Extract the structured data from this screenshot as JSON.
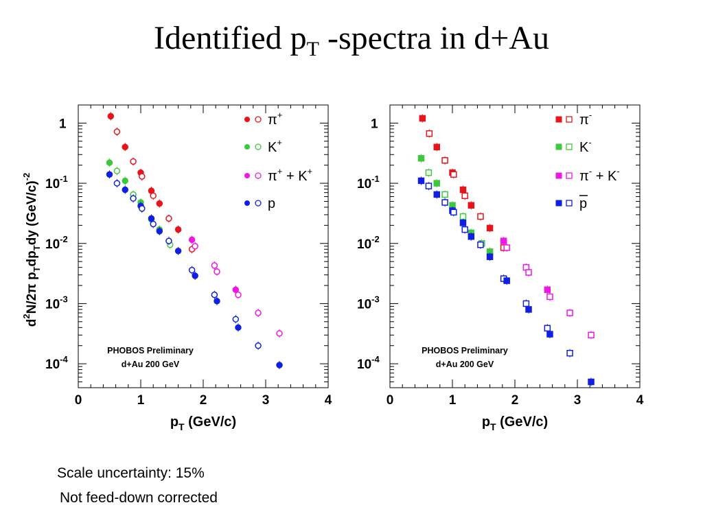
{
  "slide": {
    "title_main": "Identified p",
    "title_sub": "T",
    "title_rest": " -spectra in d+Au",
    "note_scale": "Scale uncertainty: 15%",
    "note_feeddown": "Not feed-down corrected"
  },
  "colors": {
    "red": "#e8141c",
    "green": "#3ec83e",
    "magenta": "#ee18e6",
    "blue": "#1020e0"
  },
  "chart_data": [
    {
      "type": "scatter",
      "yscale": "log",
      "xlim": [
        0,
        4
      ],
      "ylim": [
        4e-05,
        2
      ],
      "xticks": [
        "0",
        "1",
        "2",
        "3",
        "4"
      ],
      "yticks": [
        {
          "base": "1",
          "exp": ""
        },
        {
          "base": "10",
          "exp": "-1"
        },
        {
          "base": "10",
          "exp": "-2"
        },
        {
          "base": "10",
          "exp": "-3"
        },
        {
          "base": "10",
          "exp": "-4"
        }
      ],
      "xlabel": "p_T (GeV/c)",
      "ylabel": "d^2N/2π p_T dp_T dy (GeV/c)^-2",
      "annotation": [
        "PHOBOS Preliminary",
        "d+Au 200 GeV"
      ],
      "legend_position": "top-right",
      "series": [
        {
          "name": "π+",
          "color": "red",
          "x": [
            0.52,
            0.62,
            0.75,
            0.88,
            1.0,
            1.02,
            1.17,
            1.2,
            1.3,
            1.45,
            1.6,
            1.82
          ],
          "y": [
            1.3,
            0.72,
            0.4,
            0.23,
            0.15,
            0.13,
            0.075,
            0.062,
            0.046,
            0.026,
            0.017,
            0.008
          ]
        },
        {
          "name": "K+",
          "color": "green",
          "x": [
            0.5,
            0.62,
            0.75,
            0.88,
            1.0,
            1.17,
            1.3,
            1.47
          ],
          "y": [
            0.22,
            0.16,
            0.11,
            0.065,
            0.048,
            0.025,
            0.017,
            0.0095
          ]
        },
        {
          "name": "π+ + K+",
          "color": "magenta",
          "x": [
            1.82,
            1.87,
            2.18,
            2.22,
            2.52,
            2.56,
            2.88,
            3.22
          ],
          "y": [
            0.0115,
            0.009,
            0.0043,
            0.0034,
            0.0017,
            0.0014,
            0.0007,
            0.00032
          ]
        },
        {
          "name": "p",
          "color": "blue",
          "x": [
            0.5,
            0.62,
            0.75,
            0.88,
            1.0,
            1.02,
            1.17,
            1.2,
            1.3,
            1.45,
            1.6,
            1.82,
            1.87,
            2.18,
            2.22,
            2.52,
            2.56,
            2.88,
            3.22
          ],
          "y": [
            0.14,
            0.1,
            0.078,
            0.056,
            0.042,
            0.038,
            0.026,
            0.021,
            0.016,
            0.011,
            0.0075,
            0.0036,
            0.0029,
            0.0014,
            0.0011,
            0.00055,
            0.0004,
            0.0002,
            9.5e-05
          ]
        }
      ]
    },
    {
      "type": "scatter",
      "yscale": "log",
      "xlim": [
        0,
        4
      ],
      "ylim": [
        4e-05,
        2
      ],
      "xticks": [
        "0",
        "1",
        "2",
        "3",
        "4"
      ],
      "yticks": [
        {
          "base": "1",
          "exp": ""
        },
        {
          "base": "10",
          "exp": "-1"
        },
        {
          "base": "10",
          "exp": "-2"
        },
        {
          "base": "10",
          "exp": "-3"
        },
        {
          "base": "10",
          "exp": "-4"
        }
      ],
      "xlabel": "p_T (GeV/c)",
      "ylabel": "",
      "annotation": [
        "PHOBOS Preliminary",
        "d+Au 200 GeV"
      ],
      "legend_position": "top-right",
      "series": [
        {
          "name": "π-",
          "color": "red",
          "x": [
            0.52,
            0.63,
            0.75,
            0.88,
            1.0,
            1.02,
            1.17,
            1.2,
            1.3,
            1.45,
            1.6,
            1.82
          ],
          "y": [
            1.2,
            0.67,
            0.4,
            0.24,
            0.15,
            0.14,
            0.078,
            0.062,
            0.043,
            0.028,
            0.018,
            0.0085
          ]
        },
        {
          "name": "K-",
          "color": "green",
          "x": [
            0.5,
            0.62,
            0.75,
            0.88,
            1.0,
            1.17,
            1.3,
            1.47,
            1.6
          ],
          "y": [
            0.26,
            0.15,
            0.1,
            0.065,
            0.043,
            0.028,
            0.015,
            0.01,
            0.0073
          ]
        },
        {
          "name": "π- + K-",
          "color": "magenta",
          "x": [
            1.82,
            1.87,
            2.18,
            2.22,
            2.52,
            2.56,
            2.88,
            3.22
          ],
          "y": [
            0.011,
            0.0085,
            0.004,
            0.0033,
            0.0017,
            0.0013,
            0.0007,
            0.0003
          ]
        },
        {
          "name": "p̄",
          "color": "blue",
          "x": [
            0.5,
            0.62,
            0.75,
            0.88,
            1.0,
            1.02,
            1.17,
            1.2,
            1.3,
            1.45,
            1.6,
            1.82,
            1.87,
            2.18,
            2.22,
            2.52,
            2.56,
            2.88,
            3.22
          ],
          "y": [
            0.11,
            0.09,
            0.065,
            0.048,
            0.035,
            0.033,
            0.022,
            0.017,
            0.013,
            0.0095,
            0.006,
            0.0026,
            0.0024,
            0.001,
            0.0008,
            0.00039,
            0.00031,
            0.00015,
            5e-05
          ]
        }
      ]
    }
  ]
}
